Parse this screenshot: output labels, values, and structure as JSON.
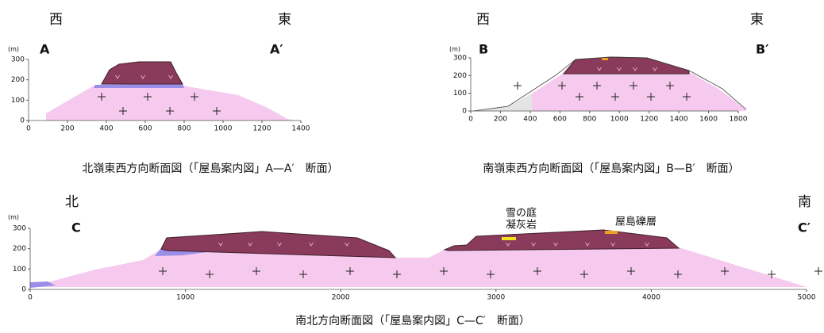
{
  "panels": [
    {
      "west": "西",
      "east": "東",
      "left_label": "A",
      "right_label": "A′",
      "unit": "(m)",
      "xticks": [
        0,
        200,
        400,
        600,
        800,
        1000,
        1200,
        1400
      ],
      "yticks": [
        0,
        100,
        200,
        300
      ],
      "caption": "北嶺東西方向断面図（「屋島案内図」A—A′　断面）"
    },
    {
      "west": "西",
      "east": "東",
      "left_label": "B",
      "right_label": "B′",
      "unit": "(m)",
      "xticks": [
        0,
        200,
        400,
        600,
        800,
        1000,
        1200,
        1400,
        1600,
        1800
      ],
      "yticks": [
        0,
        100,
        200,
        300
      ],
      "caption": "南嶺東西方向断面図（「屋島案内図」B—B′　断面）"
    },
    {
      "west": "北",
      "east": "南",
      "left_label": "C",
      "right_label": "C′",
      "unit": "(m)",
      "xticks": [
        0,
        1000,
        2000,
        3000,
        4000,
        5000
      ],
      "yticks": [
        0,
        100,
        200,
        300
      ],
      "caption": "南北方向断面図（「屋島案内図」C—C′　断面）",
      "annotations": [
        "雪の庭",
        "凝灰岩",
        "屋島礫層"
      ]
    }
  ]
}
